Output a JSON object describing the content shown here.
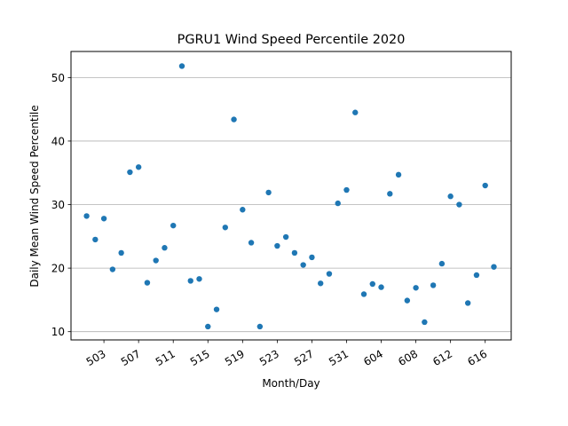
{
  "chart_data": {
    "type": "scatter",
    "title": "PGRU1 Wind Speed Percentile 2020",
    "xlabel": "Month/Day",
    "ylabel": "Daily Mean Wind Speed Percentile",
    "ylim": [
      8.7,
      54.1
    ],
    "yticks": [
      10,
      20,
      30,
      40,
      50
    ],
    "grid": "horizontal",
    "x_start_day": 1,
    "xlim": [
      -0.8,
      50
    ],
    "xticks": [
      {
        "day_index": 3,
        "label": "503"
      },
      {
        "day_index": 7,
        "label": "507"
      },
      {
        "day_index": 11,
        "label": "511"
      },
      {
        "day_index": 15,
        "label": "515"
      },
      {
        "day_index": 19,
        "label": "519"
      },
      {
        "day_index": 23,
        "label": "523"
      },
      {
        "day_index": 27,
        "label": "527"
      },
      {
        "day_index": 31,
        "label": "531"
      },
      {
        "day_index": 35,
        "label": "604"
      },
      {
        "day_index": 39,
        "label": "608"
      },
      {
        "day_index": 43,
        "label": "612"
      },
      {
        "day_index": 47,
        "label": "616"
      }
    ],
    "series": [
      {
        "name": "Wind Speed Percentile",
        "color": "#1f77b4",
        "x": [
          1,
          2,
          3,
          4,
          5,
          6,
          7,
          8,
          9,
          10,
          11,
          12,
          13,
          14,
          15,
          16,
          17,
          18,
          19,
          20,
          21,
          22,
          23,
          24,
          25,
          26,
          27,
          28,
          29,
          30,
          31,
          32,
          33,
          34,
          35,
          36,
          37,
          38,
          39,
          40,
          41,
          42,
          43,
          44,
          45,
          46,
          47,
          48
        ],
        "values": [
          28.2,
          24.5,
          27.8,
          19.8,
          22.4,
          35.1,
          35.9,
          17.7,
          21.2,
          23.2,
          26.7,
          51.8,
          18.0,
          18.3,
          10.8,
          13.5,
          26.4,
          43.4,
          29.2,
          24.0,
          10.8,
          31.9,
          23.5,
          24.9,
          22.4,
          20.5,
          21.7,
          17.6,
          19.1,
          30.2,
          32.3,
          44.5,
          15.9,
          17.5,
          17.0,
          31.7,
          34.7,
          14.9,
          16.9,
          11.5,
          17.3,
          20.7,
          31.3,
          30.0,
          14.5,
          18.9,
          33.0,
          20.2
        ]
      }
    ]
  }
}
